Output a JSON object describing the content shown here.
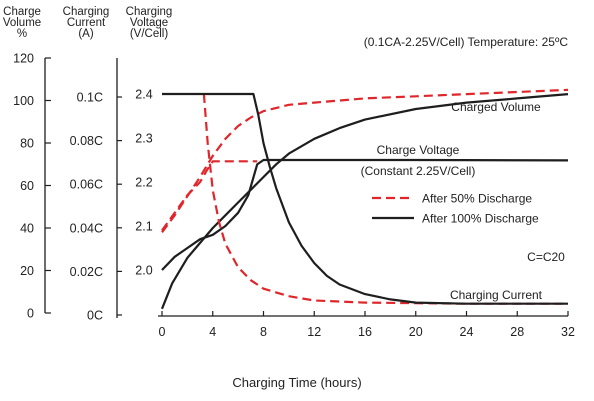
{
  "headers": {
    "volume": [
      "Charge",
      "Volume",
      "%"
    ],
    "current": [
      "Charging",
      "Current",
      "(A)"
    ],
    "voltage": [
      "Charging",
      "Voltage",
      "(V/Cell)"
    ]
  },
  "condition": "(0.1CA-2.25V/Cell) Temperature: 25ºC",
  "colors": {
    "series_50": "#e0262b",
    "series_100": "#1e1e1e",
    "axis": "#1e1e1e",
    "text": "#222222"
  },
  "chart_data": {
    "type": "line",
    "xlabel": "Charging Time (hours)",
    "x_ticks": [
      "0",
      "4",
      "8",
      "12",
      "16",
      "20",
      "24",
      "28",
      "32"
    ],
    "xlim": [
      0,
      32
    ],
    "axes": {
      "volume": {
        "label": "Charge Volume %",
        "ticks": [
          "120",
          "100",
          "80",
          "60",
          "40",
          "20",
          "0"
        ],
        "range": [
          0,
          120
        ]
      },
      "current": {
        "label": "Charging Current (A)",
        "ticks": [
          "0.1C",
          "0.08C",
          "0.06C",
          "0.04C",
          "0.02C",
          "0C"
        ],
        "range": [
          0,
          0.1
        ]
      },
      "voltage": {
        "label": "Charging Voltage (V/Cell)",
        "ticks": [
          "2.4",
          "2.3",
          "2.2",
          "2.1",
          "2.0"
        ],
        "range": [
          1.9,
          2.4
        ]
      }
    },
    "legend": {
      "placement": "middle-right",
      "entries": [
        {
          "label": "After 50% Discharge",
          "style": "dashed",
          "color": "#e0262b"
        },
        {
          "label": "After 100% Discharge",
          "style": "solid",
          "color": "#1e1e1e"
        }
      ]
    },
    "annotations": {
      "charged_volume": "Charged Volume",
      "charge_voltage": "Charge Voltage",
      "constant": "(Constant 2.25V/Cell)",
      "charging_current": "Charging Current",
      "c_note": "C=C20"
    },
    "series": [
      {
        "group": "charged_volume",
        "variant": "after_50",
        "axis": "volume",
        "points": [
          [
            0,
            38
          ],
          [
            1,
            46
          ],
          [
            2,
            55
          ],
          [
            3,
            64
          ],
          [
            4,
            74
          ],
          [
            5,
            82
          ],
          [
            6,
            88
          ],
          [
            7,
            92
          ],
          [
            8,
            95
          ],
          [
            10,
            98
          ],
          [
            12,
            99
          ],
          [
            16,
            101
          ],
          [
            20,
            102
          ],
          [
            24,
            103
          ],
          [
            28,
            104
          ],
          [
            32,
            105
          ]
        ]
      },
      {
        "group": "charged_volume",
        "variant": "after_100",
        "axis": "volume",
        "points": [
          [
            0,
            2
          ],
          [
            0.8,
            14
          ],
          [
            2,
            26
          ],
          [
            3,
            33
          ],
          [
            4,
            40
          ],
          [
            5,
            46
          ],
          [
            6,
            52
          ],
          [
            7,
            58
          ],
          [
            8,
            64
          ],
          [
            9,
            70
          ],
          [
            10,
            75
          ],
          [
            12,
            82
          ],
          [
            14,
            87
          ],
          [
            16,
            91
          ],
          [
            20,
            96
          ],
          [
            24,
            99
          ],
          [
            28,
            101
          ],
          [
            32,
            103
          ]
        ]
      },
      {
        "group": "charge_voltage",
        "variant": "after_50",
        "axis": "voltage",
        "points": [
          [
            0,
            2.09
          ],
          [
            1,
            2.13
          ],
          [
            2,
            2.17
          ],
          [
            3,
            2.2
          ],
          [
            3.5,
            2.225
          ],
          [
            4,
            2.247
          ],
          [
            6,
            2.247
          ],
          [
            7.5,
            2.247
          ]
        ]
      },
      {
        "group": "charge_voltage",
        "variant": "after_100",
        "axis": "voltage",
        "points": [
          [
            0,
            2.0
          ],
          [
            1,
            2.03
          ],
          [
            2,
            2.05
          ],
          [
            3,
            2.07
          ],
          [
            4,
            2.08
          ],
          [
            5,
            2.1
          ],
          [
            6,
            2.13
          ],
          [
            6.8,
            2.17
          ],
          [
            7.5,
            2.24
          ],
          [
            8,
            2.25
          ],
          [
            12,
            2.25
          ],
          [
            20,
            2.25
          ],
          [
            32,
            2.249
          ]
        ]
      },
      {
        "group": "charging_current",
        "variant": "after_50",
        "axis": "current",
        "points": [
          [
            3.3,
            0.1
          ],
          [
            3.6,
            0.077
          ],
          [
            4,
            0.055
          ],
          [
            4.5,
            0.04
          ],
          [
            5,
            0.03
          ],
          [
            6,
            0.019
          ],
          [
            7,
            0.013
          ],
          [
            8,
            0.009
          ],
          [
            10,
            0.0055
          ],
          [
            12,
            0.0035
          ],
          [
            16,
            0.0025
          ],
          [
            24,
            0.002
          ],
          [
            32,
            0.002
          ]
        ]
      },
      {
        "group": "charging_current",
        "variant": "after_100",
        "axis": "current",
        "points": [
          [
            0,
            0.1
          ],
          [
            7.2,
            0.1
          ],
          [
            7.6,
            0.09
          ],
          [
            8,
            0.077
          ],
          [
            8.5,
            0.066
          ],
          [
            9,
            0.056
          ],
          [
            10,
            0.04
          ],
          [
            11,
            0.029
          ],
          [
            12,
            0.021
          ],
          [
            13,
            0.015
          ],
          [
            14,
            0.011
          ],
          [
            16,
            0.0065
          ],
          [
            18,
            0.004
          ],
          [
            20,
            0.0025
          ],
          [
            24,
            0.002
          ],
          [
            32,
            0.002
          ]
        ]
      }
    ]
  }
}
